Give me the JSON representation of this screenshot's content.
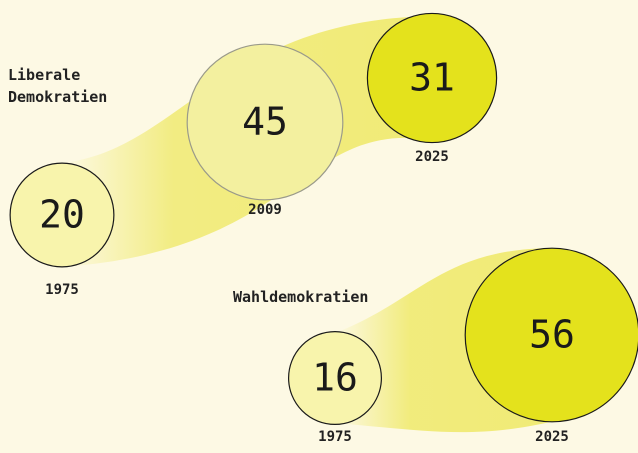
{
  "chart_data": [
    {
      "type": "bubble",
      "name": "Liberale Demokratien",
      "x": [
        "1975",
        "2009",
        "2025"
      ],
      "values": [
        20,
        45,
        31
      ],
      "colors": [
        "#f8f4ac",
        "#f3f09f",
        "#e4e21c"
      ]
    },
    {
      "type": "bubble",
      "name": "Wahldemokratien",
      "x": [
        "1975",
        "2025"
      ],
      "values": [
        16,
        56
      ],
      "colors": [
        "#f8f4ac",
        "#e4e21c"
      ]
    }
  ]
}
